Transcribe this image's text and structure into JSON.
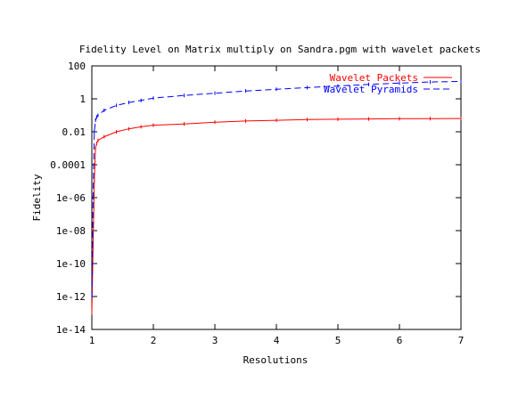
{
  "chart_data": {
    "type": "line",
    "title": "Fidelity Level on Matrix multiply on Sandra.pgm with wavelet packets",
    "xlabel": "Resolutions",
    "ylabel": "Fidelity",
    "xlim": [
      1,
      7
    ],
    "ylim": [
      1e-14,
      100
    ],
    "yscale": "log",
    "grid": false,
    "legend_position": "top-right",
    "xticks": [
      1,
      2,
      3,
      4,
      5,
      6,
      7
    ],
    "xtick_labels": [
      "1",
      "2",
      "3",
      "4",
      "5",
      "6",
      "7"
    ],
    "yticks": [
      1e-14,
      1e-12,
      1e-10,
      1e-08,
      1e-06,
      0.0001,
      0.01,
      1,
      100
    ],
    "ytick_labels": [
      "1e-14",
      "1e-12",
      "1e-10",
      "1e-08",
      "1e-06",
      "0.0001",
      "0.01",
      "1",
      "100"
    ],
    "series": [
      {
        "name": "Wavelet Packets",
        "color": "#ff0000",
        "dash": "solid",
        "x": [
          1.0,
          1.02,
          1.04,
          1.06,
          1.08,
          1.1,
          1.2,
          1.4,
          1.6,
          1.8,
          2.0,
          2.5,
          3.0,
          3.5,
          4.0,
          4.5,
          5.0,
          5.5,
          6.0,
          6.5,
          7.0
        ],
        "y": [
          1e-13,
          1e-09,
          1e-05,
          0.001,
          0.002,
          0.003,
          0.005,
          0.01,
          0.015,
          0.02,
          0.025,
          0.03,
          0.038,
          0.045,
          0.05,
          0.055,
          0.058,
          0.06,
          0.062,
          0.063,
          0.064
        ]
      },
      {
        "name": "Wavelet Pyramids",
        "color": "#0000ff",
        "dash": "dashed",
        "x": [
          1.0,
          1.02,
          1.04,
          1.06,
          1.08,
          1.1,
          1.2,
          1.4,
          1.6,
          1.8,
          2.0,
          2.5,
          3.0,
          3.5,
          4.0,
          4.5,
          5.0,
          5.5,
          6.0,
          6.5,
          7.0
        ],
        "y": [
          1e-12,
          1e-06,
          0.01,
          0.05,
          0.08,
          0.1,
          0.2,
          0.4,
          0.6,
          0.8,
          1.1,
          1.6,
          2.2,
          3.0,
          3.8,
          4.8,
          6.0,
          7.5,
          9.0,
          10.5,
          11.5
        ]
      }
    ]
  }
}
